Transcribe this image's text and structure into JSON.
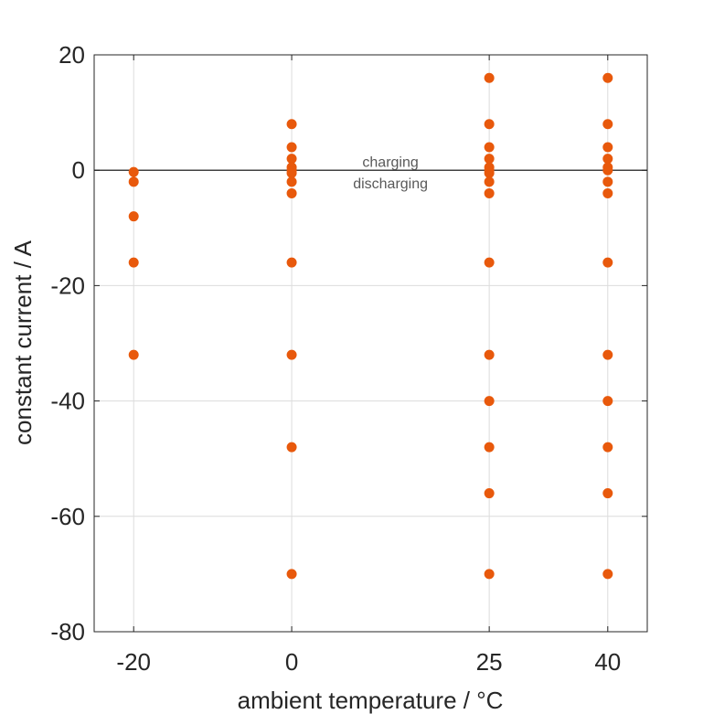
{
  "chart_data": {
    "type": "scatter",
    "xlabel": "ambient temperature / °C",
    "ylabel": "constant current / A",
    "xticks": [
      -20,
      0,
      25,
      40
    ],
    "xtick_labels": [
      "-20",
      "0",
      "25",
      "40"
    ],
    "yticks": [
      20,
      0,
      -20,
      -40,
      -60,
      -80
    ],
    "ytick_labels": [
      "20",
      "0",
      "-20",
      "-40",
      "-60",
      "-80"
    ],
    "xlim": [
      -25,
      45
    ],
    "ylim": [
      -80,
      20
    ],
    "grid": true,
    "reference_line": {
      "y": 0
    },
    "annotations": [
      {
        "text": "charging",
        "x": 12.5,
        "y": 1.5
      },
      {
        "text": "discharging",
        "x": 12.5,
        "y": -2.2
      }
    ],
    "series": [
      {
        "color": "#e8590c",
        "points": [
          [
            -20,
            -0.3
          ],
          [
            -20,
            -2
          ],
          [
            -20,
            -8
          ],
          [
            -20,
            -16
          ],
          [
            -20,
            -32
          ],
          [
            0,
            8
          ],
          [
            0,
            4
          ],
          [
            0,
            2
          ],
          [
            0,
            0.5
          ],
          [
            0,
            0
          ],
          [
            0,
            -0.5
          ],
          [
            0,
            -2
          ],
          [
            0,
            -4
          ],
          [
            0,
            -16
          ],
          [
            0,
            -32
          ],
          [
            0,
            -48
          ],
          [
            0,
            -70
          ],
          [
            25,
            16
          ],
          [
            25,
            8
          ],
          [
            25,
            4
          ],
          [
            25,
            2
          ],
          [
            25,
            0.5
          ],
          [
            25,
            0
          ],
          [
            25,
            -0.5
          ],
          [
            25,
            -2
          ],
          [
            25,
            -4
          ],
          [
            25,
            -16
          ],
          [
            25,
            -32
          ],
          [
            25,
            -40
          ],
          [
            25,
            -48
          ],
          [
            25,
            -56
          ],
          [
            25,
            -70
          ],
          [
            40,
            16
          ],
          [
            40,
            8
          ],
          [
            40,
            4
          ],
          [
            40,
            2
          ],
          [
            40,
            0.5
          ],
          [
            40,
            0
          ],
          [
            40,
            -2
          ],
          [
            40,
            -4
          ],
          [
            40,
            -16
          ],
          [
            40,
            -32
          ],
          [
            40,
            -40
          ],
          [
            40,
            -48
          ],
          [
            40,
            -56
          ],
          [
            40,
            -70
          ]
        ]
      }
    ]
  }
}
